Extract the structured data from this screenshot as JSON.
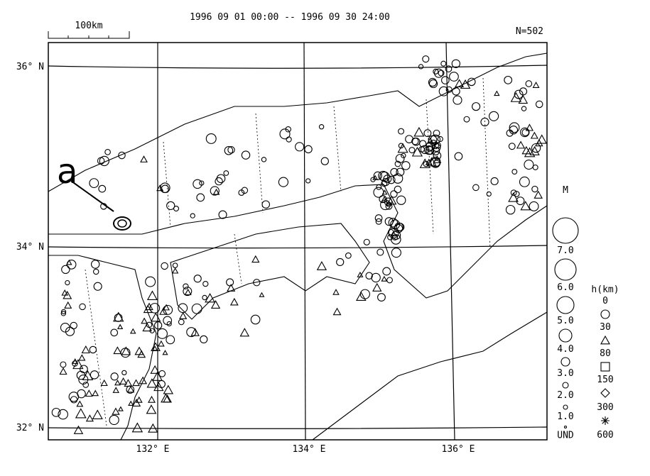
{
  "header": {
    "title": "1996 09 01 00:00 -- 1996 09 30 24:00",
    "scale": "100km",
    "count": "N=502"
  },
  "map": {
    "lat_labels": [
      "36° N",
      "34° N",
      "32° N"
    ],
    "lon_labels": [
      "132° E",
      "134° E",
      "136° E"
    ],
    "annotation": "a"
  },
  "legend": {
    "magnitude_title": "M",
    "magnitudes": [
      "7.0",
      "6.0",
      "5.0",
      "4.0",
      "3.0",
      "2.0",
      "1.0",
      "UND"
    ],
    "depth_title": "h(km)",
    "depths": [
      "0",
      "30",
      "80",
      "150",
      "300",
      "600"
    ]
  }
}
